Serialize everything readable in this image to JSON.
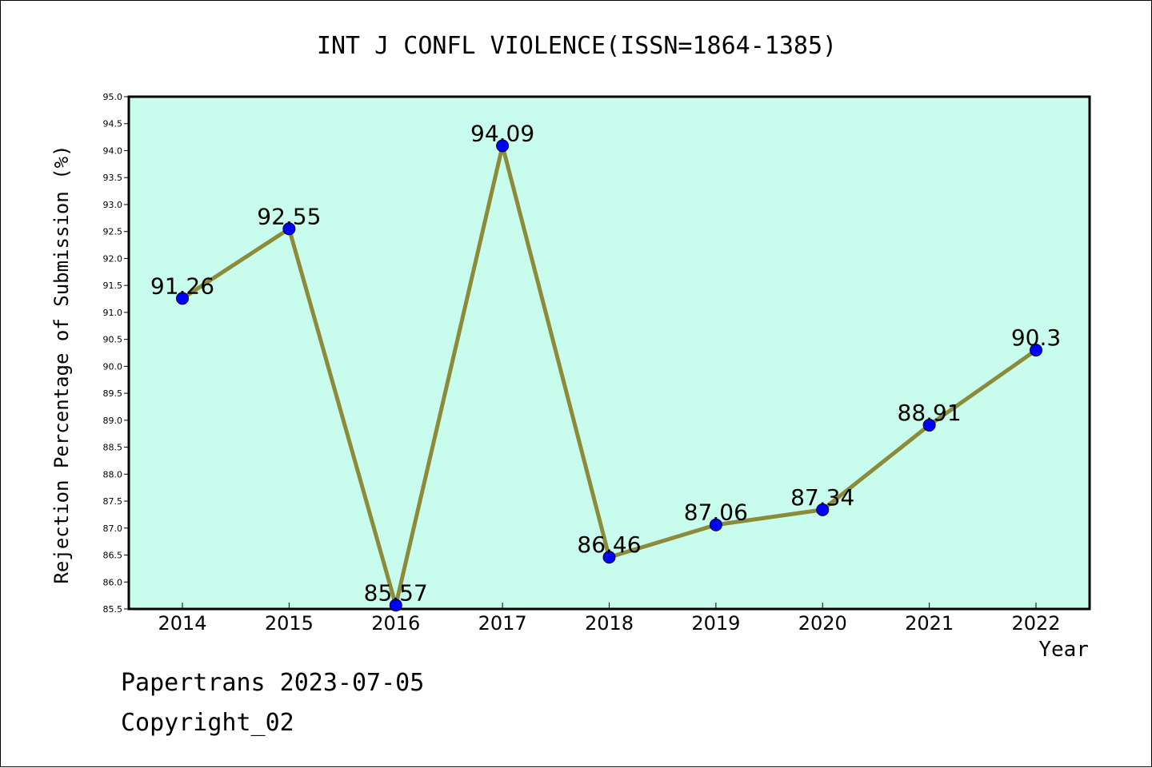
{
  "footer": {
    "line1": "Papertrans 2023-07-05",
    "line2": "Copyright_02"
  },
  "chart_data": {
    "type": "line",
    "title": "INT J CONFL VIOLENCE(ISSN=1864-1385)",
    "xlabel": "Year",
    "ylabel": "Rejection Percentage of Submission (%)",
    "categories": [
      "2014",
      "2015",
      "2016",
      "2017",
      "2018",
      "2019",
      "2020",
      "2021",
      "2022"
    ],
    "values": [
      91.26,
      92.55,
      85.57,
      94.09,
      86.46,
      87.06,
      87.34,
      88.91,
      90.3
    ],
    "data_labels": [
      "91.26",
      "92.55",
      "85.57",
      "94.09",
      "86.46",
      "87.06",
      "87.34",
      "88.91",
      "90.3"
    ],
    "ylim": [
      85.5,
      95.0
    ],
    "yticks": [
      "85.5",
      "86.0",
      "86.5",
      "87.0",
      "87.5",
      "88.0",
      "88.5",
      "89.0",
      "89.5",
      "90.0",
      "90.5",
      "91.0",
      "91.5",
      "92.0",
      "92.5",
      "93.0",
      "93.5",
      "94.0",
      "94.5",
      "95.0"
    ],
    "grid": false,
    "colors": {
      "plot_background": "#c8fcec",
      "line": "#8b8b3a",
      "marker": "#0000ff"
    }
  }
}
